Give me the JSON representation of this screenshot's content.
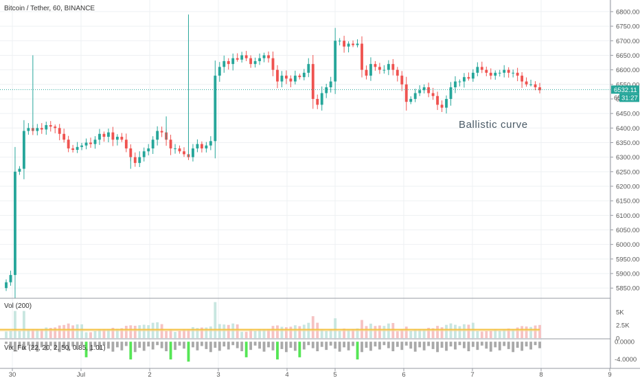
{
  "header": {
    "title": "Bitcoin / Tether, 60, BINANCE"
  },
  "annotation": "Ballistic curve",
  "price_tags": {
    "last_price": "6532.11",
    "countdown": "31:27",
    "hidden_label": "65"
  },
  "colors": {
    "up": "#26a69a",
    "down": "#ef5350",
    "bull_vol": "#c8e6e0",
    "bear_vol": "#f6c3c3",
    "ma_line": "#f5c242",
    "vix_bar": "#a9a9a9",
    "vix_hi": "#55e655",
    "grid": "#eef0f3",
    "axis_text": "#555555",
    "price_line": "#26a69a"
  },
  "chart_data": [
    {
      "type": "candlestick",
      "title": "Bitcoin / Tether, 60, BINANCE",
      "ylim": [
        5815,
        6840
      ],
      "yticks": [
        "6800.00",
        "6750.00",
        "6700.00",
        "6650.00",
        "6600.00",
        "6550.00",
        "6500.00",
        "6450.00",
        "6400.00",
        "6350.00",
        "6300.00",
        "6250.00",
        "6200.00",
        "6150.00",
        "6100.00",
        "6050.00",
        "6000.00",
        "5950.00",
        "5900.00",
        "5850.00"
      ],
      "x_ticks": [
        "30",
        "Jul",
        "2",
        "3",
        "4",
        "5",
        "6",
        "7",
        "8",
        "9"
      ],
      "close": [
        5870,
        5895,
        6250,
        6260,
        6390,
        6400,
        6390,
        6400,
        6395,
        6410,
        6405,
        6400,
        6380,
        6360,
        6330,
        6325,
        6335,
        6340,
        6350,
        6345,
        6360,
        6380,
        6370,
        6385,
        6360,
        6370,
        6360,
        6330,
        6300,
        6280,
        6300,
        6320,
        6330,
        6360,
        6390,
        6385,
        6360,
        6330,
        6330,
        6320,
        6310,
        6300,
        6330,
        6345,
        6330,
        6340,
        6355,
        6580,
        6610,
        6630,
        6620,
        6640,
        6635,
        6650,
        6640,
        6620,
        6630,
        6640,
        6650,
        6640,
        6600,
        6560,
        6580,
        6570,
        6560,
        6580,
        6575,
        6590,
        6620,
        6500,
        6480,
        6520,
        6540,
        6560,
        6700,
        6700,
        6680,
        6690,
        6685,
        6690,
        6600,
        6580,
        6620,
        6610,
        6600,
        6600,
        6620,
        6600,
        6580,
        6550,
        6490,
        6500,
        6520,
        6530,
        6540,
        6520,
        6510,
        6480,
        6470,
        6500,
        6540,
        6560,
        6560,
        6575,
        6570,
        6590,
        6610,
        6600,
        6590,
        6580,
        6590,
        6590,
        6600,
        6590,
        6590,
        6580,
        6560,
        6550,
        6550,
        6540,
        6530
      ],
      "series": [
        {
          "name": "Vol (200)",
          "ylim": [
            0,
            7500
          ],
          "yticks": [
            "5K",
            "2.5K",
            "0"
          ]
        },
        {
          "name": "Vix_Fix (22, 20, 2, 50, 0.85, 1.01)",
          "ylim": [
            -6,
            0.5
          ],
          "yticks": [
            "0.0000",
            "-4.0000"
          ]
        }
      ]
    }
  ]
}
